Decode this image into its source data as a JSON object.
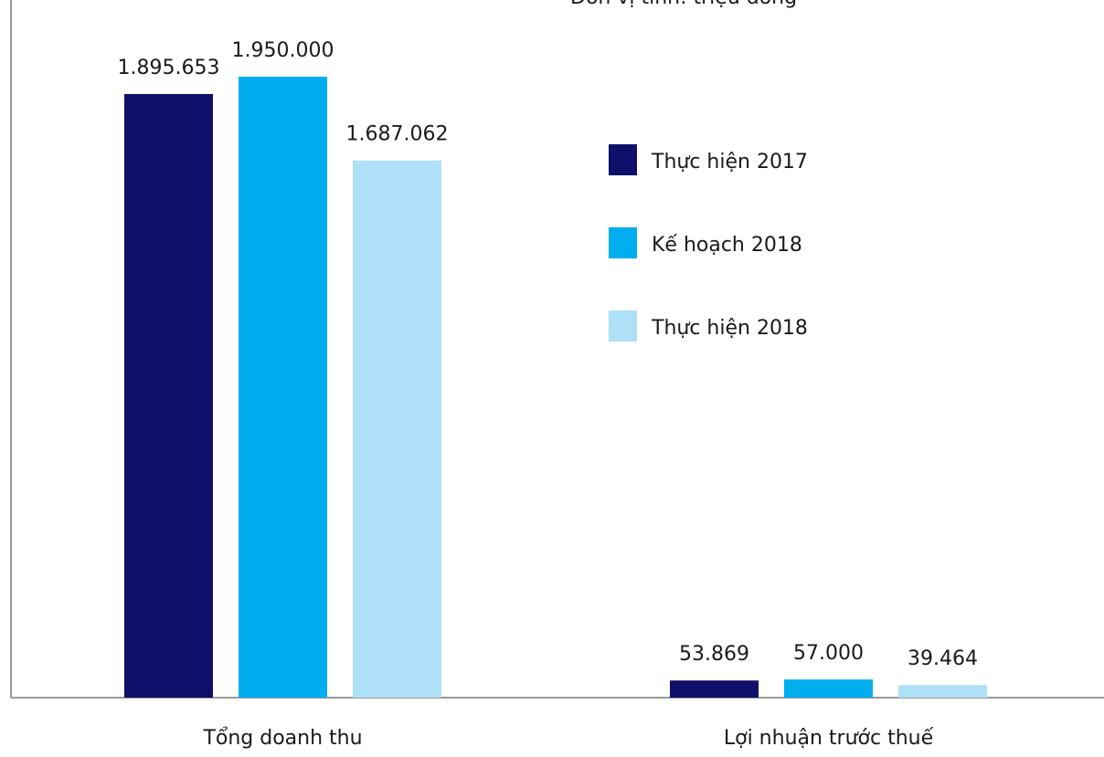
{
  "chart_data": {
    "type": "bar",
    "title": "Đơn vị tính: triệu đồng",
    "categories": [
      "Tổng doanh thu",
      "Lợi nhuận trước thuế"
    ],
    "series": [
      {
        "name": "Thực hiện 2017",
        "color": "#10106a",
        "values": [
          1895653,
          53869
        ],
        "labels": [
          "1.895.653",
          "53.869"
        ]
      },
      {
        "name": "Kế hoạch 2018",
        "color": "#00adee",
        "values": [
          1950000,
          57000
        ],
        "labels": [
          "1.950.000",
          "57.000"
        ]
      },
      {
        "name": "Thực hiện 2018",
        "color": "#aee0f8",
        "values": [
          1687062,
          39464
        ],
        "labels": [
          "1.687.062",
          "39.464"
        ]
      }
    ],
    "grid": false,
    "legend_position": "right"
  }
}
